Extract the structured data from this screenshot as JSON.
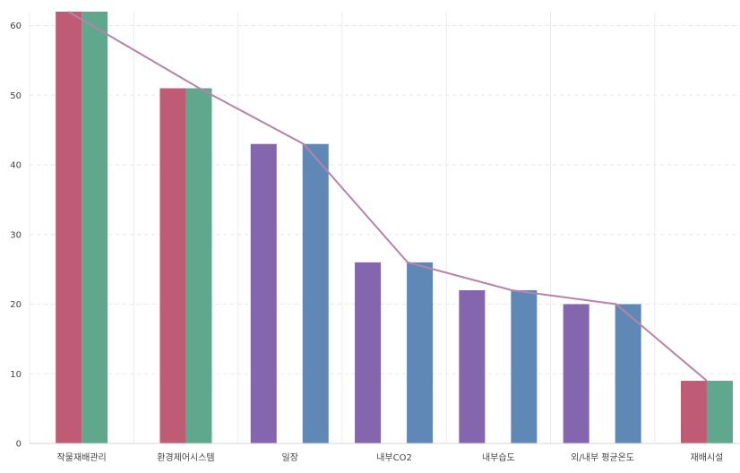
{
  "chart_data": {
    "type": "bar",
    "title": "",
    "xlabel": "",
    "ylabel": "",
    "ylim": [
      0,
      62
    ],
    "yticks": [
      0,
      10,
      20,
      30,
      40,
      50,
      60
    ],
    "grid": true,
    "categories": [
      "작물재배관리",
      "환경제어시스템",
      "일장",
      "내부CO2",
      "내부습도",
      "외/내부 평균온도",
      "재배시설"
    ],
    "series": [
      {
        "color": "#bf5b75",
        "values": [
          62,
          51,
          null,
          null,
          null,
          null,
          9
        ]
      },
      {
        "color": "#5fa88e",
        "values": [
          62,
          51,
          null,
          null,
          null,
          null,
          9
        ]
      },
      {
        "color": "#8466ae",
        "values": [
          null,
          null,
          43,
          26,
          22,
          20,
          null
        ]
      },
      {
        "color": "#6088b6",
        "values": [
          null,
          null,
          43,
          26,
          22,
          20,
          null
        ]
      }
    ],
    "line": {
      "color": "#b784a7",
      "values": [
        62,
        51,
        43,
        26,
        22,
        20,
        9
      ]
    }
  }
}
